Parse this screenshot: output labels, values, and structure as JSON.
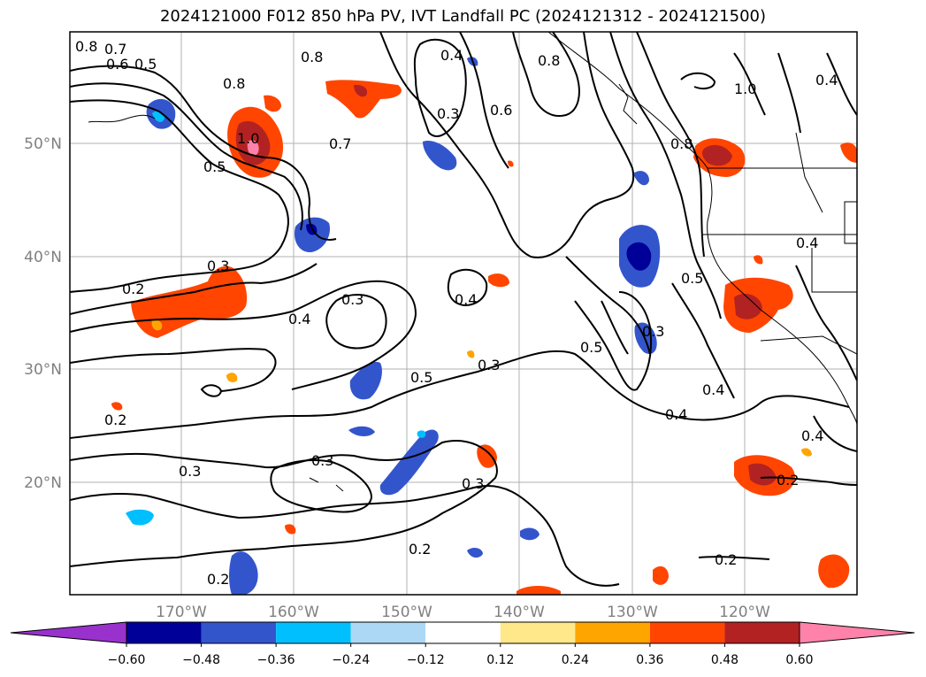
{
  "title": "2024121000 F012 850 hPa PV, IVT Landfall PC (2024121312 - 2024121500)",
  "latitude_labels": [
    "50°N",
    "40°N",
    "30°N",
    "20°N"
  ],
  "longitude_labels": [
    "170°W",
    "160°W",
    "150°W",
    "140°W",
    "130°W",
    "120°W"
  ],
  "colorbar": {
    "ticks": [
      "−0.60",
      "−0.48",
      "−0.36",
      "−0.24",
      "−0.12",
      "0.12",
      "0.24",
      "0.36",
      "0.48",
      "0.60"
    ],
    "colors": {
      "under": "#9932cc",
      "bins": [
        "#000099",
        "#3355cc",
        "#00bfff",
        "#add8f5",
        "#ffffff",
        "#ffe88a",
        "#ffa500",
        "#ff4500",
        "#b22222"
      ],
      "over": "#ff82ab"
    }
  },
  "contour_labels": [
    "0.8",
    "0.7",
    "0.6",
    "0.5",
    "0.8",
    "0.8",
    "1.0",
    "0.5",
    "0.4",
    "0.3",
    "0.8",
    "0.6",
    "1.0",
    "0.4",
    "0.7",
    "0.8",
    "0.3",
    "0.2",
    "0.4",
    "0.3",
    "0.4",
    "0.5",
    "0.3",
    "0.5",
    "0.4",
    "0.4",
    "0.3",
    "0.3",
    "0.2",
    "0.3",
    "0.3",
    "0.2",
    "0.2",
    "0.2",
    "0.2",
    "0.4",
    "0.5",
    "0.4"
  ]
}
